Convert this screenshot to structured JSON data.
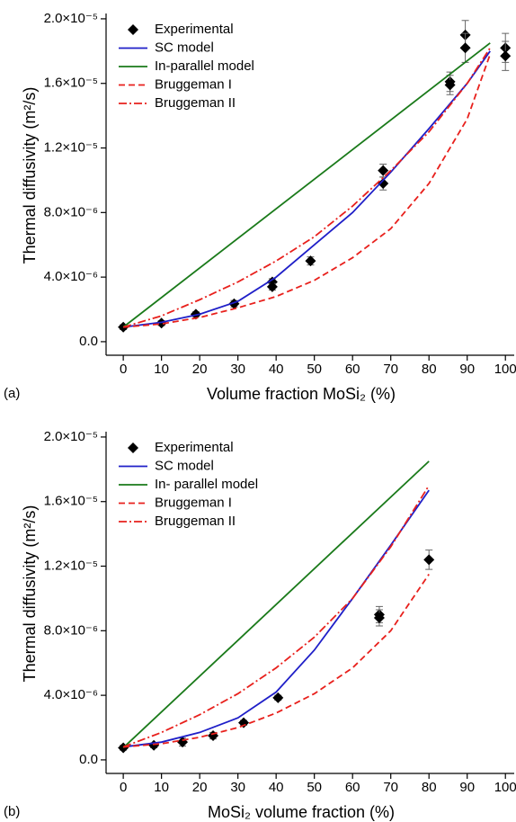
{
  "chart_data": [
    {
      "type": "line",
      "panel_label": "(a)",
      "x_label": "Volume fraction MoSi₂ (%)",
      "y_label": "Thermal diffusivity (m²/s)",
      "xlim": [
        -4.5,
        102.3
      ],
      "ylim": [
        -8.4e-07,
        2.033e-05
      ],
      "xticks": [
        0,
        10,
        20,
        30,
        40,
        50,
        60,
        70,
        80,
        90,
        100
      ],
      "yticks": [
        {
          "value": 0,
          "label": "0.0"
        },
        {
          "value": 4e-06,
          "label": "4.0×10⁻⁶"
        },
        {
          "value": 8e-06,
          "label": "8.0×10⁻⁶"
        },
        {
          "value": 1.2e-05,
          "label": "1.2×10⁻⁵"
        },
        {
          "value": 1.6e-05,
          "label": "1.6×10⁻⁵"
        },
        {
          "value": 2e-05,
          "label": "2.0×10⁻⁵"
        }
      ],
      "legend": "upper left",
      "series": [
        {
          "name": "Experimental",
          "color": "#000000",
          "marker": "diamond",
          "x": [
            0,
            10,
            19,
            29,
            39,
            39,
            49,
            68,
            68,
            85.5,
            85.5,
            89.5,
            89.5,
            100,
            100
          ],
          "values": [
            9e-07,
            1.15e-06,
            1.7e-06,
            2.35e-06,
            3.7e-06,
            3.4e-06,
            5e-06,
            1.06e-05,
            9.8e-06,
            1.61e-05,
            1.59e-05,
            1.9e-05,
            1.82e-05,
            1.82e-05,
            1.77e-05
          ],
          "errors": [
            1.5e-07,
            1.5e-07,
            1.5e-07,
            2e-07,
            2e-07,
            2e-07,
            2.5e-07,
            4e-07,
            4e-07,
            6e-07,
            6e-07,
            9e-07,
            9e-07,
            9e-07,
            9e-07
          ]
        },
        {
          "name": "SC model",
          "color": "#1f1fc8",
          "style": "solid",
          "x": [
            0,
            10,
            20,
            30,
            40,
            50,
            60,
            70,
            80,
            90,
            96
          ],
          "values": [
            9e-07,
            1.2e-06,
            1.7e-06,
            2.5e-06,
            4e-06,
            6e-06,
            8e-06,
            1.05e-05,
            1.32e-05,
            1.6e-05,
            1.8e-05
          ]
        },
        {
          "name": "In-parallel model",
          "color": "#1a7a1a",
          "style": "solid",
          "x": [
            0,
            96
          ],
          "values": [
            9e-07,
            1.85e-05
          ]
        },
        {
          "name": "Bruggeman I",
          "color": "#e8201c",
          "style": "dashed",
          "x": [
            0,
            10,
            20,
            30,
            40,
            50,
            60,
            70,
            80,
            90,
            96
          ],
          "values": [
            9e-07,
            1.1e-06,
            1.5e-06,
            2.1e-06,
            2.8e-06,
            3.8e-06,
            5.2e-06,
            7e-06,
            9.8e-06,
            1.38e-05,
            1.78e-05
          ]
        },
        {
          "name": "Bruggeman II",
          "color": "#e8201c",
          "style": "dashdot",
          "x": [
            0,
            10,
            20,
            30,
            40,
            50,
            60,
            70,
            80,
            90,
            96
          ],
          "values": [
            9e-07,
            1.6e-06,
            2.6e-06,
            3.7e-06,
            5e-06,
            6.5e-06,
            8.4e-06,
            1.06e-05,
            1.3e-05,
            1.6e-05,
            1.82e-05
          ]
        }
      ]
    },
    {
      "type": "line",
      "panel_label": "(b)",
      "x_label": "MoSi₂ volume fraction (%)",
      "y_label": "Thermal diffusivity (m²/s)",
      "xlim": [
        -4.5,
        102.3
      ],
      "ylim": [
        -8.4e-07,
        2.033e-05
      ],
      "xticks": [
        0,
        10,
        20,
        30,
        40,
        50,
        60,
        70,
        80,
        90,
        100
      ],
      "yticks": [
        {
          "value": 0,
          "label": "0.0"
        },
        {
          "value": 4e-06,
          "label": "4.0×10⁻⁶"
        },
        {
          "value": 8e-06,
          "label": "8.0×10⁻⁶"
        },
        {
          "value": 1.2e-05,
          "label": "1.2×10⁻⁵"
        },
        {
          "value": 1.6e-05,
          "label": "1.6×10⁻⁵"
        },
        {
          "value": 2e-05,
          "label": "2.0×10⁻⁵"
        }
      ],
      "legend": "upper left",
      "series": [
        {
          "name": "Experimental",
          "color": "#000000",
          "marker": "diamond",
          "x": [
            0,
            8,
            15.5,
            23.5,
            31.5,
            40.5,
            67,
            67,
            80
          ],
          "values": [
            7.5e-07,
            9e-07,
            1.1e-06,
            1.5e-06,
            2.3e-06,
            3.85e-06,
            9e-06,
            8.8e-06,
            1.24e-05
          ],
          "errors": [
            1.5e-07,
            1.5e-07,
            2.5e-07,
            2e-07,
            1.5e-07,
            1.5e-07,
            5e-07,
            5e-07,
            6e-07
          ]
        },
        {
          "name": "SC model",
          "color": "#1f1fc8",
          "style": "solid",
          "x": [
            0,
            10,
            20,
            30,
            40,
            50,
            60,
            70,
            80
          ],
          "values": [
            8e-07,
            1.1e-06,
            1.7e-06,
            2.6e-06,
            4.2e-06,
            6.8e-06,
            1e-05,
            1.33e-05,
            1.67e-05
          ]
        },
        {
          "name": "In- parallel model",
          "color": "#1a7a1a",
          "style": "solid",
          "x": [
            0,
            80
          ],
          "values": [
            7.5e-07,
            1.85e-05
          ]
        },
        {
          "name": "Bruggeman I",
          "color": "#e8201c",
          "style": "dashed",
          "x": [
            0,
            10,
            20,
            30,
            40,
            50,
            60,
            70,
            80
          ],
          "values": [
            8e-07,
            1e-06,
            1.4e-06,
            2e-06,
            2.9e-06,
            4.1e-06,
            5.7e-06,
            8e-06,
            1.15e-05
          ]
        },
        {
          "name": "Bruggeman II",
          "color": "#e8201c",
          "style": "dashdot",
          "x": [
            0,
            10,
            20,
            30,
            40,
            50,
            60,
            70,
            80
          ],
          "values": [
            8e-07,
            1.7e-06,
            2.8e-06,
            4.1e-06,
            5.7e-06,
            7.6e-06,
            1e-05,
            1.32e-05,
            1.7e-05
          ]
        }
      ]
    }
  ]
}
